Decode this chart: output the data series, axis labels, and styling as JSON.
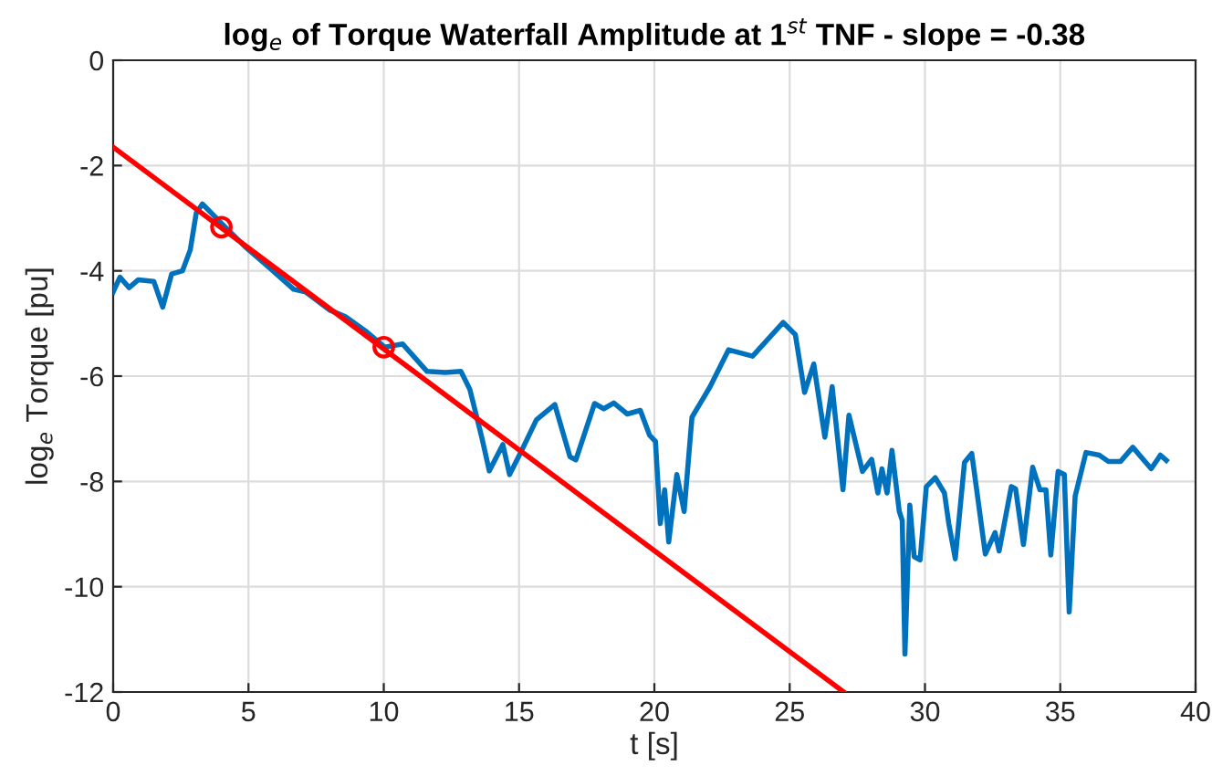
{
  "chart_data": {
    "type": "line",
    "title": "log$_{e}$ of Torque Waterfall Amplitude at 1$^{st}$ TNF - slope = -0.38",
    "xlabel": "t [s]",
    "ylabel": "log$_{e}$ Torque [pu]",
    "xlim": [
      0,
      40
    ],
    "ylim": [
      -12,
      0
    ],
    "xticks": [
      0,
      5,
      10,
      15,
      20,
      25,
      30,
      35,
      40
    ],
    "yticks": [
      -12,
      -10,
      -8,
      -6,
      -4,
      -2,
      0
    ],
    "grid": true,
    "series": [
      {
        "color": "#0072bd",
        "x": [
          0,
          0.25,
          0.59,
          0.93,
          1.5,
          1.83,
          2.16,
          2.56,
          2.85,
          3.07,
          3.3,
          3.97,
          4.87,
          5.77,
          6.67,
          7.11,
          8.02,
          8.58,
          9.37,
          10.04,
          10.7,
          11.6,
          12.27,
          12.85,
          13.18,
          13.63,
          13.9,
          14.4,
          14.65,
          15.1,
          15.64,
          16.32,
          16.88,
          17.1,
          17.79,
          18.13,
          18.5,
          19.0,
          19.48,
          19.82,
          20.04,
          20.22,
          20.38,
          20.53,
          20.83,
          21.1,
          21.39,
          22.06,
          22.74,
          23.63,
          24.76,
          25.21,
          25.55,
          25.89,
          26.3,
          26.57,
          26.97,
          27.19,
          27.69,
          28.03,
          28.26,
          28.41,
          28.6,
          28.78,
          29.05,
          29.16,
          29.26,
          29.44,
          29.6,
          29.82,
          30.05,
          30.38,
          30.72,
          30.88,
          31.12,
          31.46,
          31.73,
          32.23,
          32.59,
          32.74,
          33.19,
          33.35,
          33.64,
          33.98,
          34.25,
          34.47,
          34.65,
          34.92,
          35.15,
          35.33,
          35.55,
          35.95,
          36.44,
          36.78,
          37.23,
          37.68,
          38.36,
          38.7,
          38.92
        ],
        "values": [
          -4.4,
          -4.12,
          -4.32,
          -4.17,
          -4.2,
          -4.69,
          -4.06,
          -4.0,
          -3.6,
          -2.9,
          -2.73,
          -3.08,
          -3.54,
          -3.94,
          -4.35,
          -4.4,
          -4.75,
          -4.87,
          -5.16,
          -5.45,
          -5.39,
          -5.91,
          -5.93,
          -5.91,
          -6.25,
          -7.18,
          -7.8,
          -7.3,
          -7.87,
          -7.41,
          -6.83,
          -6.54,
          -7.53,
          -7.59,
          -6.52,
          -6.62,
          -6.51,
          -6.72,
          -6.65,
          -7.12,
          -7.24,
          -8.8,
          -8.16,
          -9.15,
          -7.87,
          -8.57,
          -6.78,
          -6.2,
          -5.5,
          -5.62,
          -4.98,
          -5.21,
          -6.31,
          -5.77,
          -7.16,
          -6.2,
          -8.16,
          -6.74,
          -7.81,
          -7.58,
          -8.22,
          -7.76,
          -8.22,
          -7.41,
          -8.57,
          -8.74,
          -11.28,
          -8.45,
          -9.43,
          -9.49,
          -8.1,
          -7.93,
          -8.22,
          -8.8,
          -9.47,
          -7.64,
          -7.47,
          -9.38,
          -8.97,
          -9.32,
          -8.1,
          -8.14,
          -9.2,
          -7.73,
          -8.16,
          -8.16,
          -9.4,
          -7.81,
          -7.87,
          -10.48,
          -8.28,
          -7.45,
          -7.5,
          -7.62,
          -7.62,
          -7.35,
          -7.76,
          -7.5,
          -7.6
        ]
      },
      {
        "type": "line",
        "color": "#ff0000",
        "x": [
          0,
          27
        ],
        "values": [
          -1.65,
          -12
        ]
      },
      {
        "type": "scatter",
        "color": "#ff0000",
        "marker": "circle",
        "x": [
          4,
          10
        ],
        "values": [
          -3.17,
          -5.45
        ]
      }
    ]
  }
}
